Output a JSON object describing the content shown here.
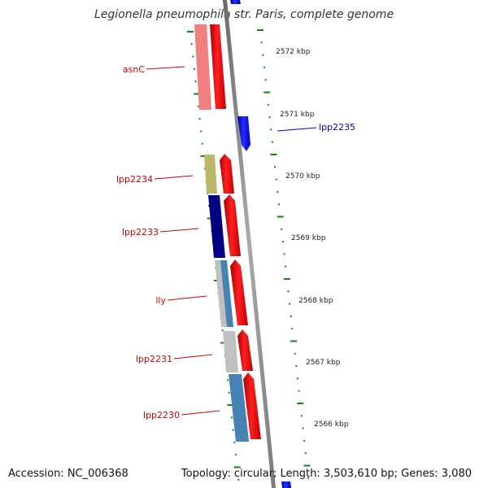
{
  "title": "Legionella pneumophila str. Paris, complete genome",
  "footer": {
    "accession": "Accession: NC_006368",
    "info": "Topology: circular; Length: 3,503,610 bp; Genes: 3,080"
  },
  "colors": {
    "forward": "#ff0000",
    "reverse": "#0000ff",
    "backbone": "#888888",
    "ticks": "#0b8a0b",
    "label_red": "#cc0000",
    "label_blue": "#0000cc"
  },
  "scale_labels": [
    "2572 kbp",
    "2571 kbp",
    "2570 kbp",
    "2569 kbp",
    "2568 kbp",
    "2567 kbp",
    "2566 kbp"
  ],
  "genes": [
    {
      "name": "asnC",
      "strand": "forward",
      "cog_color": "#f08080"
    },
    {
      "name": "lpp2235",
      "strand": "reverse",
      "cog_color": null
    },
    {
      "name": "lpp2234",
      "strand": "forward",
      "cog_color": "#bdb76b"
    },
    {
      "name": "lpp2233",
      "strand": "forward",
      "cog_color": "#000080"
    },
    {
      "name": "lly",
      "strand": "forward",
      "cog_color": "#4682b4"
    },
    {
      "name": "lpp2231",
      "strand": "forward",
      "cog_color": "#c0c0c0"
    },
    {
      "name": "lpp2230",
      "strand": "forward",
      "cog_color": "#4682b4"
    }
  ]
}
